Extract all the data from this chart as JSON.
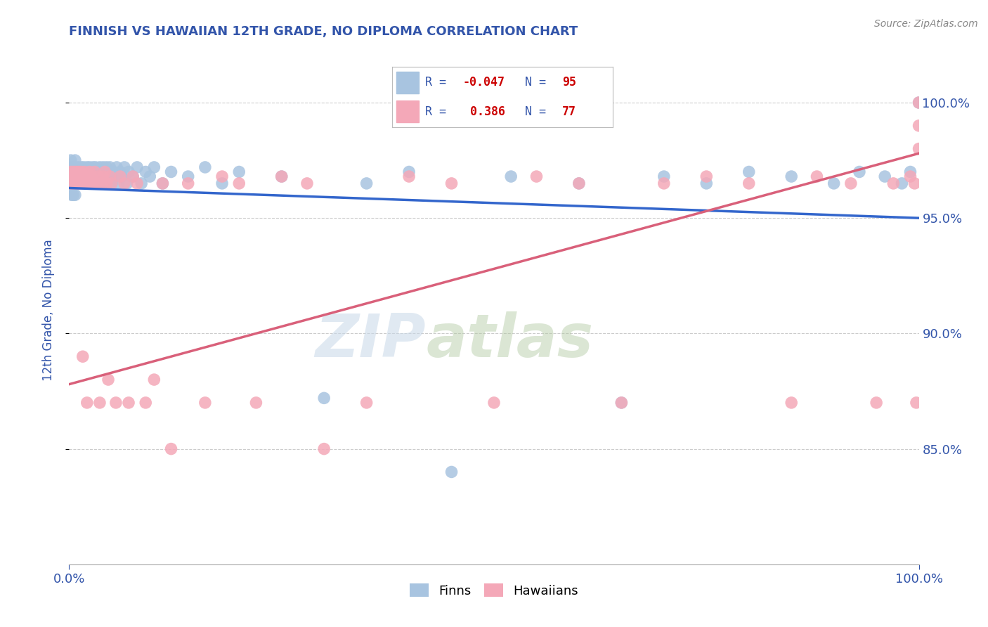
{
  "title": "FINNISH VS HAWAIIAN 12TH GRADE, NO DIPLOMA CORRELATION CHART",
  "source": "Source: ZipAtlas.com",
  "ylabel": "12th Grade, No Diploma",
  "watermark_zip": "ZIP",
  "watermark_atlas": "atlas",
  "finns_R": -0.047,
  "finns_N": 95,
  "hawaiians_R": 0.386,
  "hawaiians_N": 77,
  "finns_color": "#a8c4e0",
  "hawaiians_color": "#f4a8b8",
  "finns_line_color": "#3366cc",
  "hawaiians_line_color": "#d9607a",
  "title_color": "#3355aa",
  "axis_label_color": "#3355aa",
  "tick_label_color": "#3355aa",
  "legend_R_color": "#cc0000",
  "legend_N_color": "#3355aa",
  "background_color": "#ffffff",
  "xlim": [
    0.0,
    1.0
  ],
  "ylim": [
    0.8,
    1.02
  ],
  "yticks": [
    0.85,
    0.9,
    0.95,
    1.0
  ],
  "xticks": [
    0.0,
    1.0
  ],
  "finns_trend_x": [
    0.0,
    1.0
  ],
  "finns_trend_y": [
    0.963,
    0.95
  ],
  "hawaiians_trend_x": [
    0.0,
    1.0
  ],
  "hawaiians_trend_y": [
    0.878,
    0.978
  ],
  "finns_x": [
    0.001,
    0.002,
    0.002,
    0.003,
    0.003,
    0.004,
    0.004,
    0.005,
    0.005,
    0.006,
    0.007,
    0.007,
    0.008,
    0.009,
    0.01,
    0.01,
    0.011,
    0.012,
    0.013,
    0.014,
    0.015,
    0.015,
    0.016,
    0.017,
    0.018,
    0.019,
    0.02,
    0.021,
    0.022,
    0.023,
    0.024,
    0.025,
    0.026,
    0.027,
    0.028,
    0.029,
    0.03,
    0.031,
    0.032,
    0.033,
    0.034,
    0.035,
    0.036,
    0.037,
    0.038,
    0.039,
    0.04,
    0.041,
    0.042,
    0.043,
    0.044,
    0.045,
    0.046,
    0.047,
    0.048,
    0.05,
    0.052,
    0.054,
    0.056,
    0.058,
    0.06,
    0.062,
    0.065,
    0.068,
    0.07,
    0.075,
    0.08,
    0.085,
    0.09,
    0.095,
    0.1,
    0.11,
    0.12,
    0.14,
    0.16,
    0.18,
    0.2,
    0.25,
    0.3,
    0.35,
    0.4,
    0.45,
    0.52,
    0.6,
    0.65,
    0.7,
    0.75,
    0.8,
    0.85,
    0.9,
    0.93,
    0.96,
    0.98,
    0.99,
    1.0
  ],
  "finns_y": [
    0.97,
    0.975,
    0.965,
    0.972,
    0.96,
    0.97,
    0.965,
    0.972,
    0.96,
    0.968,
    0.975,
    0.96,
    0.97,
    0.965,
    0.972,
    0.968,
    0.965,
    0.97,
    0.968,
    0.972,
    0.97,
    0.965,
    0.968,
    0.972,
    0.97,
    0.965,
    0.968,
    0.972,
    0.97,
    0.965,
    0.972,
    0.97,
    0.968,
    0.965,
    0.972,
    0.968,
    0.97,
    0.972,
    0.968,
    0.965,
    0.97,
    0.968,
    0.972,
    0.965,
    0.97,
    0.968,
    0.972,
    0.965,
    0.97,
    0.968,
    0.972,
    0.965,
    0.97,
    0.968,
    0.972,
    0.965,
    0.97,
    0.968,
    0.972,
    0.965,
    0.97,
    0.968,
    0.972,
    0.965,
    0.97,
    0.968,
    0.972,
    0.965,
    0.97,
    0.968,
    0.972,
    0.965,
    0.97,
    0.968,
    0.972,
    0.965,
    0.97,
    0.968,
    0.872,
    0.965,
    0.97,
    0.84,
    0.968,
    0.965,
    0.87,
    0.968,
    0.965,
    0.97,
    0.968,
    0.965,
    0.97,
    0.968,
    0.965,
    0.97,
    1.0
  ],
  "hawaiians_x": [
    0.001,
    0.002,
    0.003,
    0.004,
    0.005,
    0.006,
    0.007,
    0.008,
    0.009,
    0.01,
    0.011,
    0.012,
    0.013,
    0.014,
    0.015,
    0.016,
    0.017,
    0.018,
    0.019,
    0.02,
    0.021,
    0.022,
    0.023,
    0.024,
    0.025,
    0.026,
    0.028,
    0.03,
    0.032,
    0.034,
    0.036,
    0.038,
    0.04,
    0.042,
    0.044,
    0.046,
    0.048,
    0.05,
    0.055,
    0.06,
    0.065,
    0.07,
    0.075,
    0.08,
    0.09,
    0.1,
    0.11,
    0.12,
    0.14,
    0.16,
    0.18,
    0.2,
    0.22,
    0.25,
    0.28,
    0.3,
    0.35,
    0.4,
    0.45,
    0.5,
    0.55,
    0.6,
    0.65,
    0.7,
    0.75,
    0.8,
    0.85,
    0.88,
    0.92,
    0.95,
    0.97,
    0.99,
    0.995,
    0.997,
    1.0,
    1.0,
    1.0
  ],
  "hawaiians_y": [
    0.965,
    0.97,
    0.968,
    0.965,
    0.97,
    0.968,
    0.965,
    0.97,
    0.968,
    0.965,
    0.97,
    0.968,
    0.965,
    0.97,
    0.968,
    0.89,
    0.965,
    0.97,
    0.968,
    0.965,
    0.87,
    0.965,
    0.968,
    0.97,
    0.965,
    0.968,
    0.965,
    0.97,
    0.965,
    0.968,
    0.87,
    0.965,
    0.968,
    0.97,
    0.965,
    0.88,
    0.968,
    0.965,
    0.87,
    0.968,
    0.965,
    0.87,
    0.968,
    0.965,
    0.87,
    0.88,
    0.965,
    0.85,
    0.965,
    0.87,
    0.968,
    0.965,
    0.87,
    0.968,
    0.965,
    0.85,
    0.87,
    0.968,
    0.965,
    0.87,
    0.968,
    0.965,
    0.87,
    0.965,
    0.968,
    0.965,
    0.87,
    0.968,
    0.965,
    0.87,
    0.965,
    0.968,
    0.965,
    0.87,
    0.98,
    0.99,
    1.0
  ]
}
